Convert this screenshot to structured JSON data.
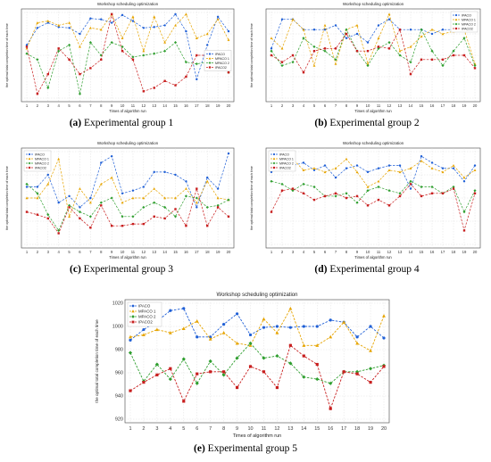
{
  "colors": {
    "ipaco": "#1f5fd6",
    "mpaco1": "#e6a400",
    "mpaco2": "#2e9e2e",
    "ipaco2": "#c81e1e",
    "grid": "#d8d8d8"
  },
  "x_ticks": [
    "1",
    "2",
    "3",
    "4",
    "5",
    "6",
    "7",
    "8",
    "9",
    "10",
    "11",
    "12",
    "13",
    "14",
    "15",
    "16",
    "17",
    "18",
    "19",
    "20"
  ],
  "charts": [
    {
      "id": "p1",
      "caption_letter": "(a)",
      "caption_text": "Experimental group 1",
      "chart_data": {
        "type": "line",
        "title": "Workshop scheduling optimization",
        "xlabel": "Times of algorithm run",
        "ylabel": "the optimal total completion time of each time",
        "y_ticks": [
          "",
          "",
          "",
          "",
          ""
        ],
        "legend_position": "middle-right",
        "ylim": [
          0,
          100
        ],
        "x": [
          1,
          2,
          3,
          4,
          5,
          6,
          7,
          8,
          9,
          10,
          11,
          12,
          13,
          14,
          15,
          16,
          17,
          18,
          19,
          20
        ],
        "series": [
          {
            "name": "IPACO",
            "color_key": "ipaco",
            "values": [
              62,
              82,
              88,
              83,
              82,
              75,
              93,
              92,
              88,
              97,
              90,
              82,
              83,
              85,
              98,
              78,
              22,
              62,
              95,
              78
            ]
          },
          {
            "name": "MPACO 1",
            "color_key": "mpaco1",
            "values": [
              58,
              88,
              90,
              85,
              88,
              60,
              82,
              80,
              98,
              70,
              95,
              55,
              95,
              65,
              85,
              98,
              70,
              75,
              92,
              68
            ]
          },
          {
            "name": "MPACO 2",
            "color_key": "mpaco2",
            "values": [
              52,
              45,
              12,
              55,
              62,
              5,
              65,
              50,
              65,
              60,
              48,
              50,
              52,
              55,
              65,
              42,
              40,
              42,
              48,
              30
            ]
          },
          {
            "name": "IPACO2",
            "color_key": "ipaco2",
            "values": [
              60,
              5,
              28,
              58,
              45,
              28,
              35,
              45,
              98,
              55,
              45,
              8,
              12,
              20,
              15,
              25,
              50,
              50,
              50,
              30
            ]
          }
        ]
      }
    },
    {
      "id": "p2",
      "caption_letter": "(b)",
      "caption_text": "Experimental group 2",
      "chart_data": {
        "type": "line",
        "title": "Workshop scheduling optimization",
        "xlabel": "Times of algorithm run",
        "ylabel": "the optimal total completion time of each time",
        "y_ticks": [
          "",
          "",
          "",
          "",
          ""
        ],
        "legend_position": "top-right",
        "ylim": [
          0,
          100
        ],
        "x": [
          1,
          2,
          3,
          4,
          5,
          6,
          7,
          8,
          9,
          10,
          11,
          12,
          13,
          14,
          15,
          16,
          17,
          18,
          19,
          20
        ],
        "series": [
          {
            "name": "IPACO",
            "color_key": "ipaco",
            "values": [
              58,
              92,
              92,
              80,
              80,
              80,
              85,
              70,
              75,
              65,
              85,
              92,
              80,
              80,
              80,
              75,
              80,
              80,
              80,
              80
            ]
          },
          {
            "name": "MPACO 1",
            "color_key": "mpaco1",
            "values": [
              70,
              58,
              92,
              80,
              38,
              85,
              40,
              80,
              85,
              40,
              70,
              98,
              55,
              60,
              72,
              80,
              75,
              78,
              80,
              40
            ]
          },
          {
            "name": "MPACO 2",
            "color_key": "mpaco2",
            "values": [
              55,
              38,
              42,
              70,
              60,
              55,
              45,
              80,
              55,
              38,
              58,
              65,
              50,
              42,
              80,
              55,
              38,
              55,
              70,
              38
            ]
          },
          {
            "name": "IPACO2",
            "color_key": "ipaco2",
            "values": [
              50,
              42,
              50,
              30,
              55,
              58,
              58,
              75,
              55,
              55,
              60,
              58,
              80,
              28,
              45,
              45,
              45,
              50,
              50,
              35
            ]
          }
        ]
      }
    },
    {
      "id": "p3",
      "caption_letter": "(c)",
      "caption_text": "Experimental group 3",
      "chart_data": {
        "type": "line",
        "title": "Workshop scheduling optimization",
        "xlabel": "Times of algorithm run",
        "ylabel": "the optimal total completion time of each time",
        "y_ticks": [
          "",
          "",
          "",
          "",
          ""
        ],
        "legend_position": "top-left",
        "ylim": [
          0,
          100
        ],
        "x": [
          1,
          2,
          3,
          4,
          5,
          6,
          7,
          8,
          9,
          10,
          11,
          12,
          13,
          14,
          15,
          16,
          17,
          18,
          19,
          20
        ],
        "series": [
          {
            "name": "IPACO",
            "color_key": "ipaco",
            "values": [
              62,
              62,
              75,
              45,
              52,
              40,
              50,
              88,
              95,
              55,
              58,
              62,
              78,
              78,
              75,
              68,
              40,
              72,
              60,
              98
            ]
          },
          {
            "name": "MPACO 1",
            "color_key": "mpaco1",
            "values": [
              50,
              50,
              65,
              92,
              30,
              60,
              45,
              65,
              72,
              45,
              50,
              50,
              60,
              50,
              50,
              60,
              45,
              68,
              50,
              48
            ]
          },
          {
            "name": "MPACO 2",
            "color_key": "mpaco2",
            "values": [
              65,
              55,
              32,
              15,
              42,
              35,
              30,
              45,
              50,
              30,
              30,
              40,
              45,
              40,
              30,
              52,
              50,
              40,
              42,
              48
            ]
          },
          {
            "name": "IPACO2",
            "color_key": "ipaco2",
            "values": [
              35,
              32,
              28,
              12,
              40,
              28,
              18,
              42,
              20,
              20,
              22,
              22,
              30,
              28,
              38,
              20,
              60,
              20,
              40,
              30
            ]
          }
        ]
      }
    },
    {
      "id": "p4",
      "caption_letter": "(d)",
      "caption_text": "Experimental group 4",
      "chart_data": {
        "type": "line",
        "title": "Workshop scheduling optimization",
        "xlabel": "Times of algorithm run",
        "ylabel": "the optimal total completion time of each time",
        "y_ticks": [
          "",
          "",
          "",
          "",
          ""
        ],
        "legend_position": "top-left",
        "ylim": [
          0,
          100
        ],
        "x": [
          1,
          2,
          3,
          4,
          5,
          6,
          7,
          8,
          9,
          10,
          11,
          12,
          13,
          14,
          15,
          16,
          17,
          18,
          19,
          20
        ],
        "series": [
          {
            "name": "IPACO",
            "color_key": "ipaco",
            "values": [
              78,
              90,
              85,
              88,
              80,
              85,
              72,
              82,
              85,
              78,
              82,
              85,
              85,
              60,
              95,
              88,
              82,
              82,
              68,
              85
            ]
          },
          {
            "name": "MPACO 1",
            "color_key": "mpaco1",
            "values": [
              95,
              85,
              92,
              80,
              82,
              78,
              82,
              92,
              78,
              62,
              68,
              80,
              78,
              82,
              90,
              82,
              78,
              85,
              72,
              80
            ]
          },
          {
            "name": "MPACO 2",
            "color_key": "mpaco2",
            "values": [
              68,
              65,
              58,
              65,
              62,
              52,
              52,
              55,
              45,
              58,
              62,
              58,
              55,
              68,
              62,
              62,
              55,
              62,
              35,
              58
            ]
          },
          {
            "name": "IPACO2",
            "color_key": "ipaco2",
            "values": [
              35,
              58,
              60,
              55,
              48,
              52,
              55,
              50,
              52,
              42,
              48,
              42,
              52,
              65,
              52,
              55,
              55,
              60,
              15,
              55
            ]
          }
        ]
      }
    },
    {
      "id": "p5",
      "caption_letter": "(e)",
      "caption_text": "Experimental group 5",
      "chart_data": {
        "type": "line",
        "title": "Workshop scheduling optimization",
        "xlabel": "Times of algorithm run",
        "ylabel": "the optimal total completion time of each time",
        "y_ticks": [
          "1020",
          "1000",
          "980",
          "960",
          "940",
          "920"
        ],
        "legend_position": "top-left",
        "ylim": [
          910,
          1020
        ],
        "x": [
          1,
          2,
          3,
          4,
          5,
          6,
          7,
          8,
          9,
          10,
          11,
          12,
          13,
          14,
          15,
          16,
          17,
          18,
          19,
          20
        ],
        "series": [
          {
            "name": "IPACO",
            "color_key": "ipaco",
            "values": [
              985,
              995,
              1003,
              1013,
              1015,
              988,
              988,
              1000,
              1010,
              990,
              997,
              998,
              997,
              998,
              998,
              1004,
              1002,
              988,
              998,
              987
            ]
          },
          {
            "name": "MPACO 1",
            "color_key": "mpaco1",
            "values": [
              988,
              990,
              995,
              992,
              996,
              1003,
              986,
              992,
              982,
              980,
              1005,
              992,
              1015,
              980,
              980,
              988,
              1002,
              982,
              975,
              1008
            ]
          },
          {
            "name": "MPACO 2",
            "color_key": "mpaco2",
            "values": [
              973,
              946,
              962,
              948,
              967,
              944,
              965,
              952,
              968,
              982,
              968,
              970,
              963,
              950,
              948,
              944,
              955,
              955,
              958,
              961
            ]
          },
          {
            "name": "IPACO2",
            "color_key": "ipaco2",
            "values": [
              937,
              945,
              952,
              958,
              927,
              953,
              955,
              955,
              940,
              960,
              955,
              940,
              980,
              970,
              962,
              920,
              955,
              953,
              945,
              960
            ]
          }
        ]
      }
    }
  ]
}
